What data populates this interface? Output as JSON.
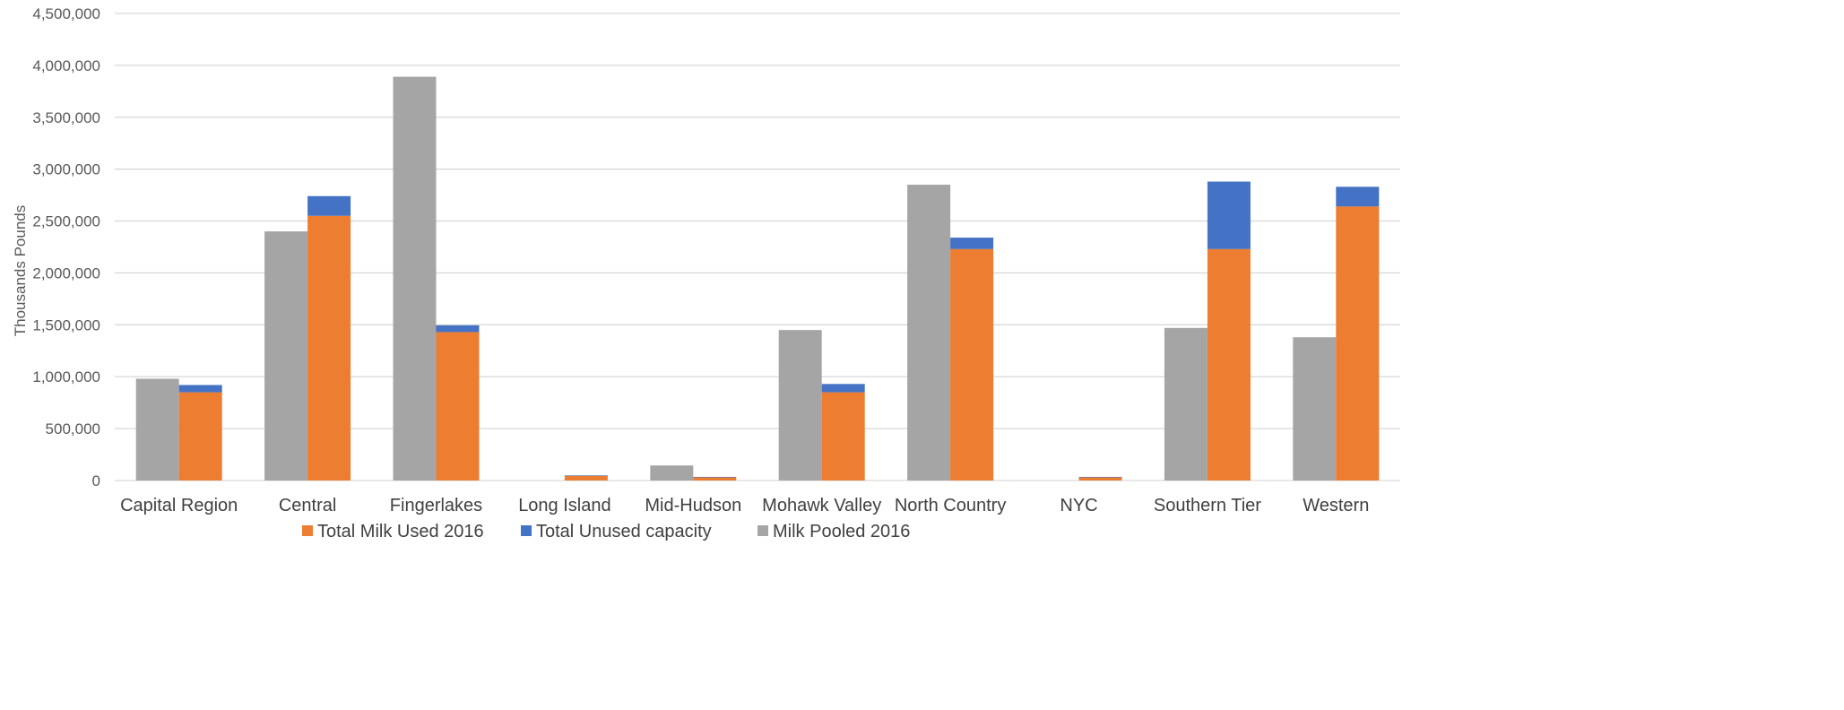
{
  "chart_data": {
    "type": "bar",
    "stacked_pair": true,
    "title": "",
    "xlabel": "",
    "ylabel": "Thousands Pounds",
    "ylim": [
      0,
      4500000
    ],
    "yticks": [
      "0",
      "500,000",
      "1,000,000",
      "1,500,000",
      "2,000,000",
      "2,500,000",
      "3,000,000",
      "3,500,000",
      "4,000,000",
      "4,500,000"
    ],
    "ytick_values": [
      0,
      500000,
      1000000,
      1500000,
      2000000,
      2500000,
      3000000,
      3500000,
      4000000,
      4500000
    ],
    "grid": true,
    "legend_position": "bottom",
    "categories": [
      "Capital Region",
      "Central",
      "Fingerlakes",
      "Long Island",
      "Mid-Hudson",
      "Mohawk Valley",
      "North Country",
      "NYC",
      "Southern Tier",
      "Western"
    ],
    "series": [
      {
        "name": "Milk Pooled 2016",
        "color": "#a5a5a5",
        "stack": "pooled",
        "values": [
          980000,
          2400000,
          3890000,
          0,
          145000,
          1450000,
          2850000,
          0,
          1470000,
          1380000
        ]
      },
      {
        "name": "Total Milk Used 2016",
        "color": "#ed7d31",
        "stack": "used",
        "values": [
          850000,
          2550000,
          1430000,
          45000,
          30000,
          850000,
          2230000,
          30000,
          2230000,
          2640000
        ]
      },
      {
        "name": "Total Unused capacity",
        "color": "#4472c4",
        "stack": "used",
        "values": [
          70000,
          190000,
          65000,
          5000,
          5000,
          80000,
          110000,
          5000,
          650000,
          190000
        ]
      }
    ],
    "legend": [
      {
        "name": "Total Milk Used 2016",
        "color": "#ed7d31"
      },
      {
        "name": "Total Unused capacity",
        "color": "#4472c4"
      },
      {
        "name": "Milk Pooled 2016",
        "color": "#a5a5a5"
      }
    ]
  }
}
